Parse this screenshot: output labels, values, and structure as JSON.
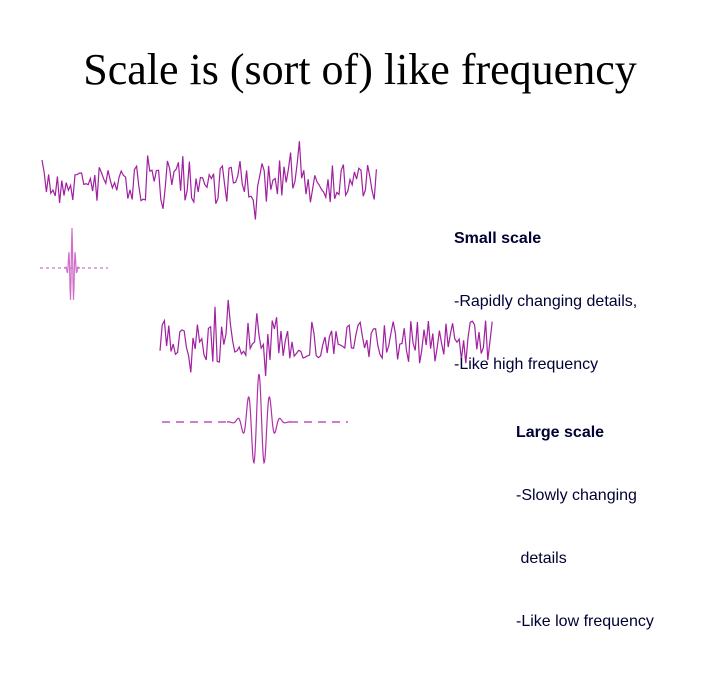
{
  "slide": {
    "title": "Scale is (sort of) like frequency",
    "small_scale": {
      "heading": "Small scale",
      "lines": [
        "-Rapidly changing details,",
        "-Like high frequency"
      ]
    },
    "large_scale": {
      "heading": "Large scale",
      "lines": [
        "-Slowly changing",
        " details",
        "-Like low frequency"
      ]
    }
  },
  "colors": {
    "signal": "#a020a0",
    "wavelet_small": "#d070c8",
    "wavelet_large": "#b030a8",
    "text": "#000033"
  }
}
